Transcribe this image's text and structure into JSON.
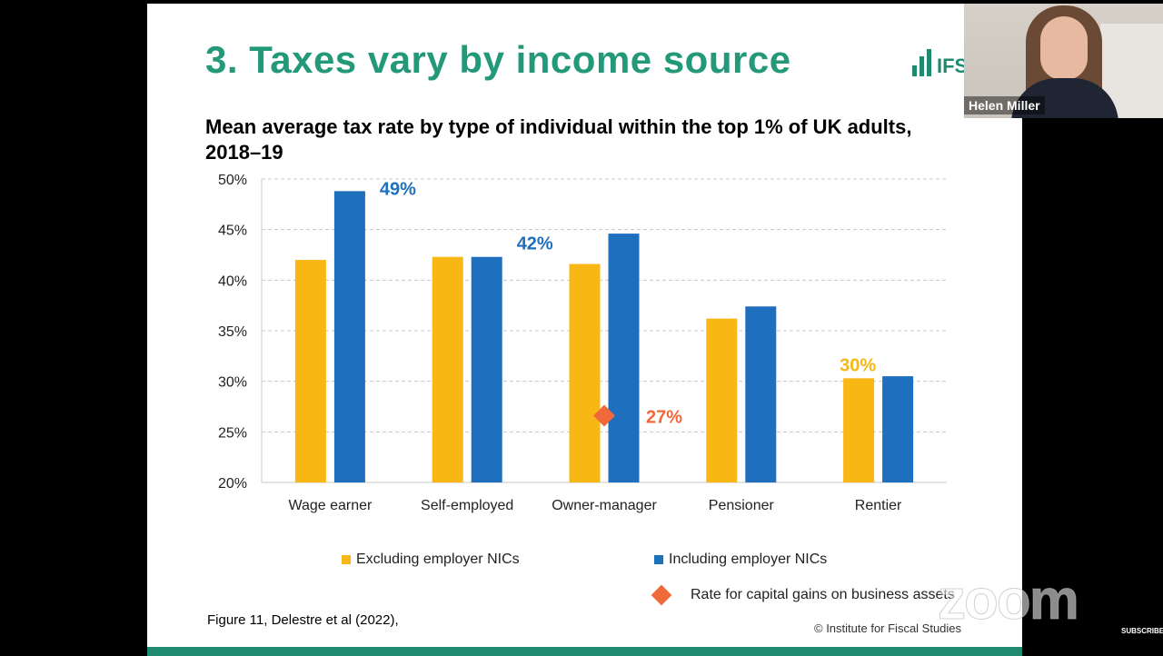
{
  "slide": {
    "title": "3. Taxes vary by income source",
    "logo_text": "IFS",
    "chart_title": "Mean average tax rate by type of individual within the top 1% of UK adults, 2018–19",
    "source": "Figure 11, Delestre et al (2022),",
    "copyright": "© Institute for Fiscal Studies"
  },
  "video": {
    "participant_name": "Helen Miller"
  },
  "watermark": {
    "zoom": "zoom",
    "subscribe": "SUBSCRIBE"
  },
  "chart_data": {
    "type": "bar",
    "title": "Mean average tax rate by type of individual within the top 1% of UK adults, 2018–19",
    "categories": [
      "Wage earner",
      "Self-employed",
      "Owner-manager",
      "Pensioner",
      "Rentier"
    ],
    "series": [
      {
        "name": "Excluding employer NICs",
        "color": "#f9b715",
        "values": [
          42,
          42.3,
          41.6,
          36.2,
          30.3
        ]
      },
      {
        "name": "Including employer NICs",
        "color": "#1f6fbf",
        "values": [
          48.8,
          42.3,
          44.6,
          37.4,
          30.5
        ]
      }
    ],
    "markers": [
      {
        "name": "Rate for capital gains on business assets",
        "category": "Owner-manager",
        "value": 26.6,
        "color": "#f0693a",
        "label": "27%",
        "label_color": "#f0693a"
      }
    ],
    "annotations": [
      {
        "text": "49%",
        "category": "Wage earner",
        "series": 1,
        "color": "#1f6fbf"
      },
      {
        "text": "42%",
        "category": "Self-employed",
        "series": 1,
        "color": "#1f6fbf"
      },
      {
        "text": "30%",
        "category": "Rentier",
        "series": 0,
        "color": "#f9b715"
      }
    ],
    "yticks": [
      "20%",
      "25%",
      "30%",
      "35%",
      "40%",
      "45%",
      "50%"
    ],
    "ylim": [
      20,
      50
    ],
    "grid": true,
    "legend": "bottom"
  }
}
